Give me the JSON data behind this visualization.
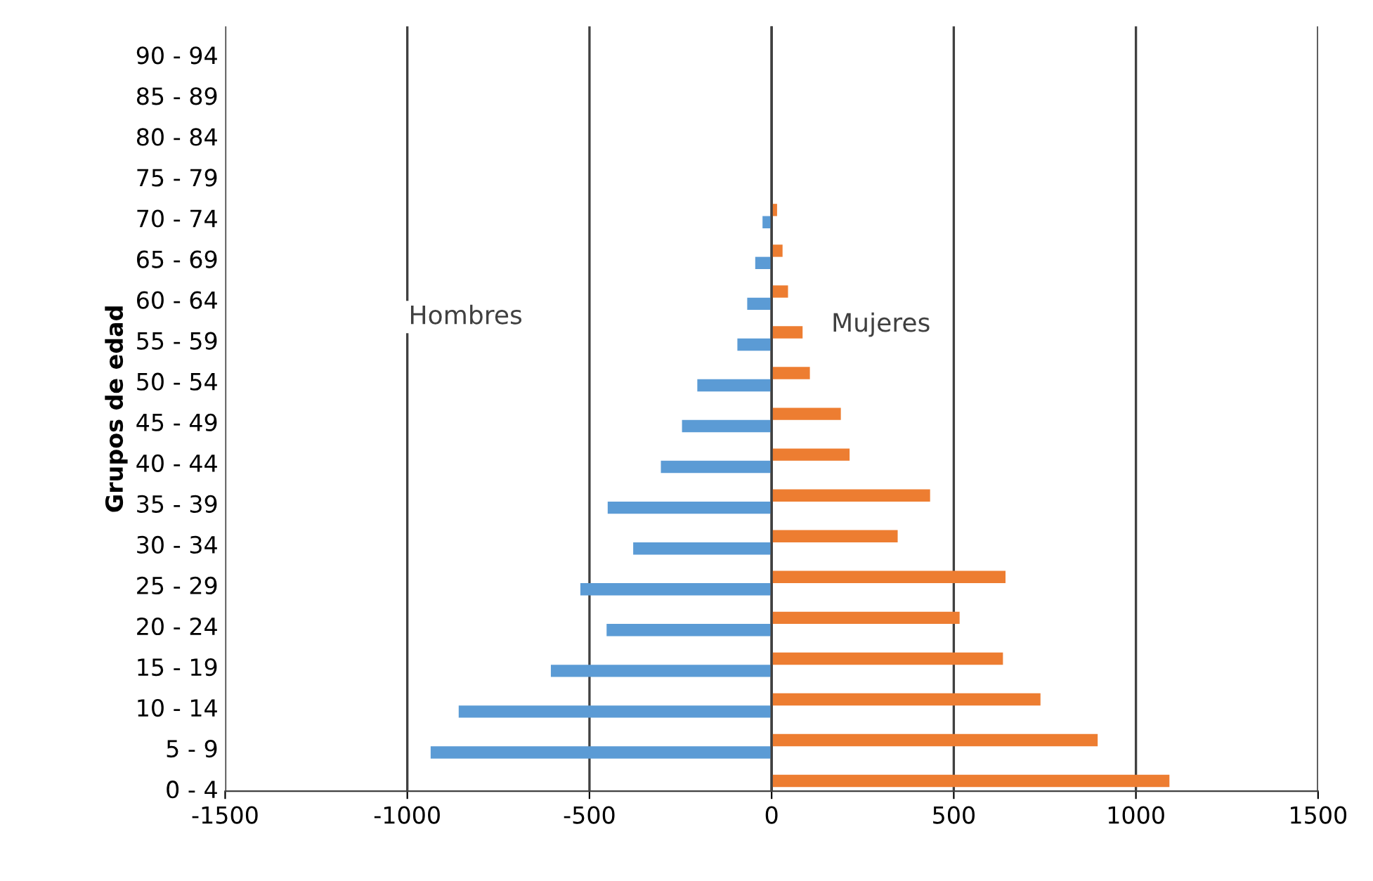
{
  "chart_data": {
    "type": "bar",
    "orientation": "horizontal",
    "ylabel": "Grupos de edad",
    "categories": [
      "90 - 94",
      "85 - 89",
      "80 - 84",
      "75 - 79",
      "70 - 74",
      "65 - 69",
      "60 - 64",
      "55 - 59",
      "50 - 54",
      "45 - 49",
      "40 - 44",
      "35 - 39",
      "30 - 34",
      "25 - 29",
      "20 - 24",
      "15 - 19",
      "10 - 14",
      "5 - 9",
      "0 - 4"
    ],
    "series": [
      {
        "color": "#5b9bd5",
        "values": [
          0,
          0,
          null,
          null,
          -25,
          -45,
          -67,
          -94,
          -204,
          -246,
          -304,
          -450,
          -380,
          -525,
          -453,
          -606,
          -859,
          -936,
          null
        ]
      },
      {
        "color": "#ed7d31",
        "values": [
          0,
          0,
          null,
          null,
          15,
          30,
          45,
          85,
          105,
          190,
          214,
          435,
          346,
          642,
          516,
          635,
          738,
          895,
          1092
        ]
      }
    ],
    "xlim": [
      -1500,
      1500
    ],
    "xticks": [
      -1500,
      -1000,
      -500,
      0,
      500,
      1000,
      1500
    ],
    "grid": "x",
    "annotations": [
      "Hombres",
      "Mujeres"
    ]
  }
}
